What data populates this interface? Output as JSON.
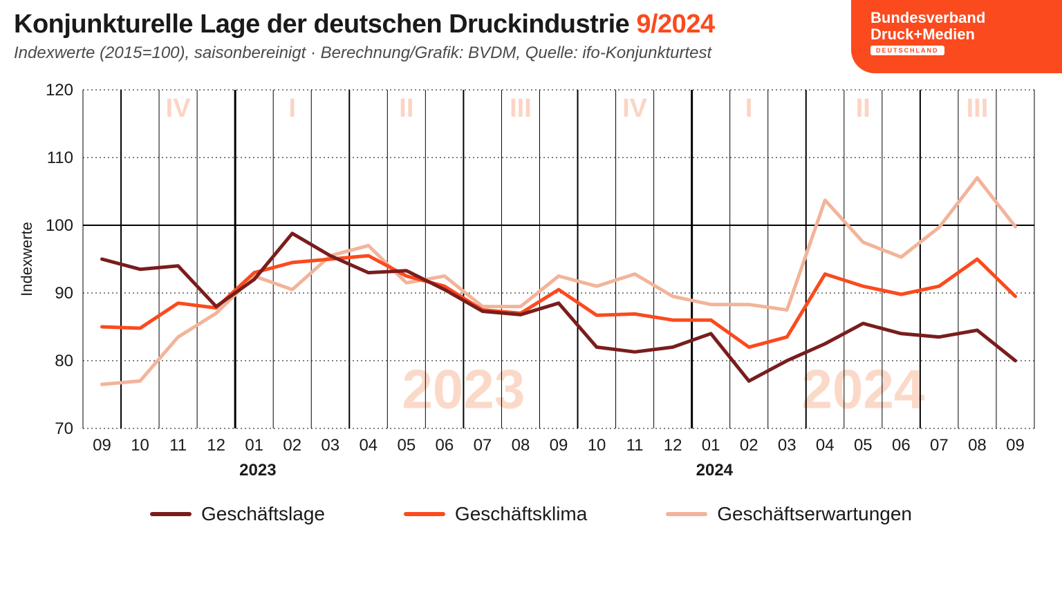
{
  "header": {
    "title_main": "Konjunkturelle Lage der deutschen Druckindustrie",
    "title_date": "9/2024",
    "subtitle": "Indexwerte (2015=100), saisonbereinigt · Berechnung/Grafik: BVDM, Quelle: ifo-Konjunkturtest"
  },
  "logo": {
    "line1": "Bundesverband",
    "line2": "Druck+Medien",
    "badge": "DEUTSCHLAND",
    "bg_color": "#fb4a1e"
  },
  "chart": {
    "type": "line",
    "y_axis_label": "Indexwerte",
    "ylim": [
      70,
      120
    ],
    "yticks": [
      70,
      80,
      90,
      100,
      110,
      120
    ],
    "y_fontsize": 24,
    "x_labels": [
      "09",
      "10",
      "11",
      "12",
      "01",
      "02",
      "03",
      "04",
      "05",
      "06",
      "07",
      "08",
      "09",
      "10",
      "11",
      "12",
      "01",
      "02",
      "03",
      "04",
      "05",
      "06",
      "07",
      "08",
      "09"
    ],
    "x_fontsize": 24,
    "year_markers": [
      {
        "at_index": 4,
        "label": "2023"
      },
      {
        "at_index": 16,
        "label": "2024"
      }
    ],
    "year_label_fontsize": 24,
    "quarter_watermarks": [
      {
        "start": 1,
        "end": 3,
        "label": "IV"
      },
      {
        "start": 4,
        "end": 6,
        "label": "I"
      },
      {
        "start": 7,
        "end": 9,
        "label": "II"
      },
      {
        "start": 10,
        "end": 12,
        "label": "III"
      },
      {
        "start": 13,
        "end": 15,
        "label": "IV"
      },
      {
        "start": 16,
        "end": 18,
        "label": "I"
      },
      {
        "start": 19,
        "end": 21,
        "label": "II"
      },
      {
        "start": 22,
        "end": 24,
        "label": "III"
      }
    ],
    "quarter_fontsize": 38,
    "quarter_color": "#fbd4c4",
    "year_watermarks": [
      {
        "center_index": 9.5,
        "label": "2023"
      },
      {
        "center_index": 20,
        "label": "2024"
      }
    ],
    "watermark_fontsize": 80,
    "watermark_color": "#fbd9c9",
    "grid_color_minor": "#000000",
    "grid_color_major": "#000000",
    "ref_line_y": 100,
    "colors": {
      "background": "#ffffff",
      "axis_text": "#1a1a1a"
    },
    "series": [
      {
        "name": "Geschäftslage",
        "color": "#7a1d1d",
        "width": 5,
        "values": [
          95.0,
          93.5,
          94.0,
          88.0,
          92.0,
          98.8,
          95.5,
          93.0,
          93.3,
          90.5,
          87.3,
          86.8,
          88.5,
          82.0,
          81.3,
          82.0,
          84.0,
          77.0,
          80.0,
          82.5,
          85.5,
          84.0,
          83.5,
          84.5,
          80.0
        ]
      },
      {
        "name": "Geschäftsklima",
        "color": "#fb4a1e",
        "width": 5,
        "values": [
          85.0,
          84.8,
          88.5,
          87.8,
          93.0,
          94.5,
          95.0,
          95.5,
          92.5,
          91.0,
          87.5,
          87.0,
          90.5,
          86.7,
          86.9,
          86.0,
          86.0,
          82.0,
          83.5,
          92.8,
          91.0,
          89.8,
          91.0,
          95.0,
          89.5
        ]
      },
      {
        "name": "Geschäftserwartungen",
        "color": "#f2b49a",
        "width": 5,
        "values": [
          76.5,
          77.0,
          83.5,
          87.0,
          92.5,
          90.5,
          95.5,
          97.0,
          91.5,
          92.5,
          88.0,
          88.0,
          92.5,
          91.0,
          92.8,
          89.5,
          88.3,
          88.3,
          87.5,
          103.7,
          97.5,
          95.3,
          99.7,
          107.0,
          99.8
        ]
      }
    ],
    "line_fontsize": 28
  },
  "legend": {
    "items": [
      {
        "label": "Geschäftslage",
        "color": "#7a1d1d"
      },
      {
        "label": "Geschäftsklima",
        "color": "#fb4a1e"
      },
      {
        "label": "Geschäftserwartungen",
        "color": "#f2b49a"
      }
    ]
  }
}
